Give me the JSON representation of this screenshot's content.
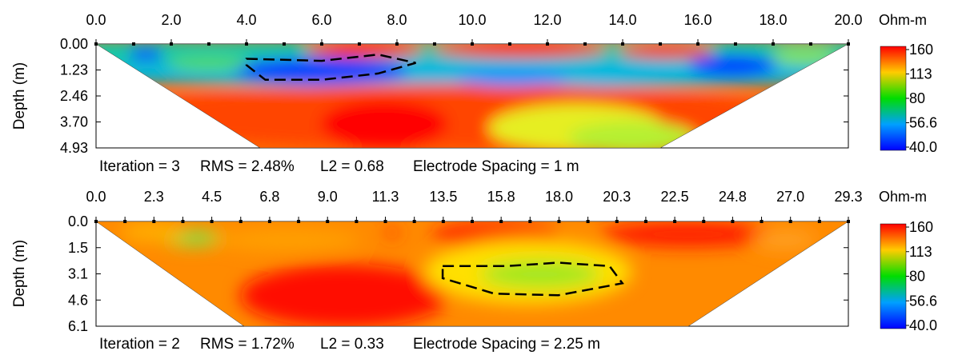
{
  "chart_data": [
    {
      "type": "heatmap",
      "title": "",
      "ylabel": "Depth (m)",
      "x_ticks": [
        "0.0",
        "2.0",
        "4.0",
        "6.0",
        "8.0",
        "10.0",
        "12.0",
        "14.0",
        "16.0",
        "18.0",
        "20.0"
      ],
      "y_ticks": [
        "0.00",
        "1.23",
        "2.46",
        "3.70",
        "4.93"
      ],
      "xlim": [
        0,
        20
      ],
      "ylim": [
        0,
        4.93
      ],
      "colorbar": {
        "unit": "Ohm-m",
        "labels": [
          "160",
          "113",
          "80",
          "56.6",
          "40.0"
        ],
        "values": [
          160,
          113,
          80,
          56.6,
          40.0
        ],
        "colors": [
          "#ff0000",
          "#ffcc00",
          "#00dd00",
          "#00a0ff",
          "#0000ff"
        ]
      },
      "caption": {
        "iteration": "Iteration = 3",
        "rms": "RMS = 2.48%",
        "l2": "L2 = 0.68",
        "spacing": "Electrode Spacing = 1 m"
      },
      "dashed_outline": [
        [
          4.0,
          0.7
        ],
        [
          6.0,
          0.8
        ],
        [
          7.5,
          0.5
        ],
        [
          8.5,
          0.9
        ],
        [
          7.5,
          1.4
        ],
        [
          6.0,
          1.7
        ],
        [
          4.5,
          1.7
        ],
        [
          4.0,
          1.0
        ]
      ]
    },
    {
      "type": "heatmap",
      "title": "",
      "ylabel": "Depth (m)",
      "x_ticks": [
        "0.0",
        "2.3",
        "4.5",
        "6.8",
        "9.0",
        "11.3",
        "13.5",
        "15.8",
        "18.0",
        "20.3",
        "22.5",
        "24.8",
        "27.0",
        "29.3"
      ],
      "y_ticks": [
        "0.0",
        "1.5",
        "3.1",
        "4.6",
        "6.1"
      ],
      "xlim": [
        0,
        29.3
      ],
      "ylim": [
        0,
        6.1
      ],
      "colorbar": {
        "unit": "Ohm-m",
        "labels": [
          "160",
          "113",
          "80",
          "56.6",
          "40.0"
        ],
        "values": [
          160,
          113,
          80,
          56.6,
          40.0
        ],
        "colors": [
          "#ff0000",
          "#ffcc00",
          "#00dd00",
          "#00a0ff",
          "#0000ff"
        ]
      },
      "caption": {
        "iteration": "Iteration = 2",
        "rms": "RMS = 1.72%",
        "l2": "L2 = 0.33",
        "spacing": "Electrode Spacing = 2.25 m"
      },
      "dashed_outline": [
        [
          13.5,
          2.6
        ],
        [
          16.0,
          2.6
        ],
        [
          18.0,
          2.4
        ],
        [
          20.0,
          2.6
        ],
        [
          20.5,
          3.6
        ],
        [
          18.0,
          4.3
        ],
        [
          15.5,
          4.2
        ],
        [
          13.5,
          3.3
        ]
      ]
    }
  ]
}
